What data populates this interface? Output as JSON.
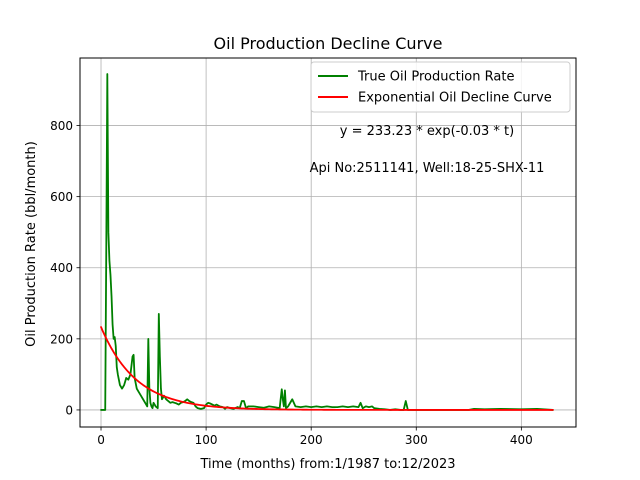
{
  "chart_data": {
    "type": "line",
    "title": "Oil Production Decline Curve",
    "xlabel": "Time (months) from:1/1987 to:12/2023",
    "ylabel": "Oil Production Rate (bbl/month)",
    "xlim": [
      -20,
      452
    ],
    "ylim": [
      -48,
      990
    ],
    "x_ticks": [
      0,
      100,
      200,
      300,
      400
    ],
    "y_ticks": [
      0,
      200,
      400,
      600,
      800
    ],
    "grid": true,
    "legend_position": "top-right",
    "annotations": [
      "y = 233.23 * exp(-0.03 * t)",
      "Api No:2511141, Well:18-25-SHX-11"
    ],
    "series": [
      {
        "name": "True Oil Production Rate",
        "color": "#008000",
        "points": [
          [
            0,
            0
          ],
          [
            4,
            0
          ],
          [
            5,
            450
          ],
          [
            6,
            945
          ],
          [
            7,
            500
          ],
          [
            8,
            420
          ],
          [
            9,
            380
          ],
          [
            10,
            320
          ],
          [
            11,
            240
          ],
          [
            12,
            200
          ],
          [
            13,
            205
          ],
          [
            14,
            180
          ],
          [
            15,
            120
          ],
          [
            16,
            100
          ],
          [
            18,
            70
          ],
          [
            20,
            60
          ],
          [
            22,
            70
          ],
          [
            24,
            90
          ],
          [
            26,
            85
          ],
          [
            28,
            100
          ],
          [
            30,
            150
          ],
          [
            31,
            155
          ],
          [
            32,
            90
          ],
          [
            34,
            60
          ],
          [
            36,
            50
          ],
          [
            38,
            40
          ],
          [
            40,
            30
          ],
          [
            42,
            20
          ],
          [
            44,
            10
          ],
          [
            45,
            200
          ],
          [
            46,
            60
          ],
          [
            47,
            20
          ],
          [
            48,
            10
          ],
          [
            49,
            5
          ],
          [
            50,
            20
          ],
          [
            52,
            10
          ],
          [
            54,
            5
          ],
          [
            55,
            270
          ],
          [
            56,
            150
          ],
          [
            57,
            60
          ],
          [
            58,
            30
          ],
          [
            60,
            40
          ],
          [
            62,
            30
          ],
          [
            64,
            25
          ],
          [
            66,
            20
          ],
          [
            68,
            22
          ],
          [
            70,
            20
          ],
          [
            72,
            18
          ],
          [
            74,
            15
          ],
          [
            76,
            20
          ],
          [
            78,
            22
          ],
          [
            80,
            25
          ],
          [
            82,
            30
          ],
          [
            84,
            25
          ],
          [
            86,
            22
          ],
          [
            88,
            20
          ],
          [
            90,
            10
          ],
          [
            92,
            5
          ],
          [
            95,
            3
          ],
          [
            98,
            5
          ],
          [
            100,
            15
          ],
          [
            102,
            20
          ],
          [
            104,
            18
          ],
          [
            106,
            15
          ],
          [
            108,
            12
          ],
          [
            110,
            15
          ],
          [
            113,
            10
          ],
          [
            116,
            8
          ],
          [
            118,
            3
          ],
          [
            120,
            8
          ],
          [
            123,
            5
          ],
          [
            126,
            3
          ],
          [
            130,
            8
          ],
          [
            132,
            5
          ],
          [
            134,
            25
          ],
          [
            136,
            25
          ],
          [
            138,
            5
          ],
          [
            140,
            10
          ],
          [
            145,
            10
          ],
          [
            150,
            8
          ],
          [
            155,
            6
          ],
          [
            160,
            10
          ],
          [
            165,
            8
          ],
          [
            170,
            5
          ],
          [
            172,
            58
          ],
          [
            173,
            30
          ],
          [
            174,
            10
          ],
          [
            175,
            55
          ],
          [
            176,
            5
          ],
          [
            178,
            10
          ],
          [
            182,
            30
          ],
          [
            185,
            10
          ],
          [
            190,
            8
          ],
          [
            195,
            10
          ],
          [
            200,
            8
          ],
          [
            205,
            10
          ],
          [
            210,
            8
          ],
          [
            215,
            10
          ],
          [
            220,
            8
          ],
          [
            225,
            8
          ],
          [
            230,
            10
          ],
          [
            235,
            8
          ],
          [
            240,
            10
          ],
          [
            245,
            8
          ],
          [
            247,
            20
          ],
          [
            249,
            5
          ],
          [
            252,
            10
          ],
          [
            255,
            8
          ],
          [
            258,
            10
          ],
          [
            260,
            5
          ],
          [
            265,
            3
          ],
          [
            270,
            2
          ],
          [
            275,
            0
          ],
          [
            280,
            2
          ],
          [
            285,
            0
          ],
          [
            288,
            0
          ],
          [
            290,
            25
          ],
          [
            292,
            0
          ],
          [
            300,
            0
          ],
          [
            320,
            0
          ],
          [
            340,
            0
          ],
          [
            350,
            0
          ],
          [
            355,
            3
          ],
          [
            365,
            2
          ],
          [
            380,
            3
          ],
          [
            400,
            2
          ],
          [
            415,
            3
          ],
          [
            430,
            0
          ]
        ]
      },
      {
        "name": "Exponential Oil Decline Curve",
        "color": "#ff0000",
        "model": {
          "form": "exponential",
          "a": 233.23,
          "b": 0.03,
          "t_start": 0,
          "t_end": 430,
          "samples": 216
        }
      }
    ]
  }
}
